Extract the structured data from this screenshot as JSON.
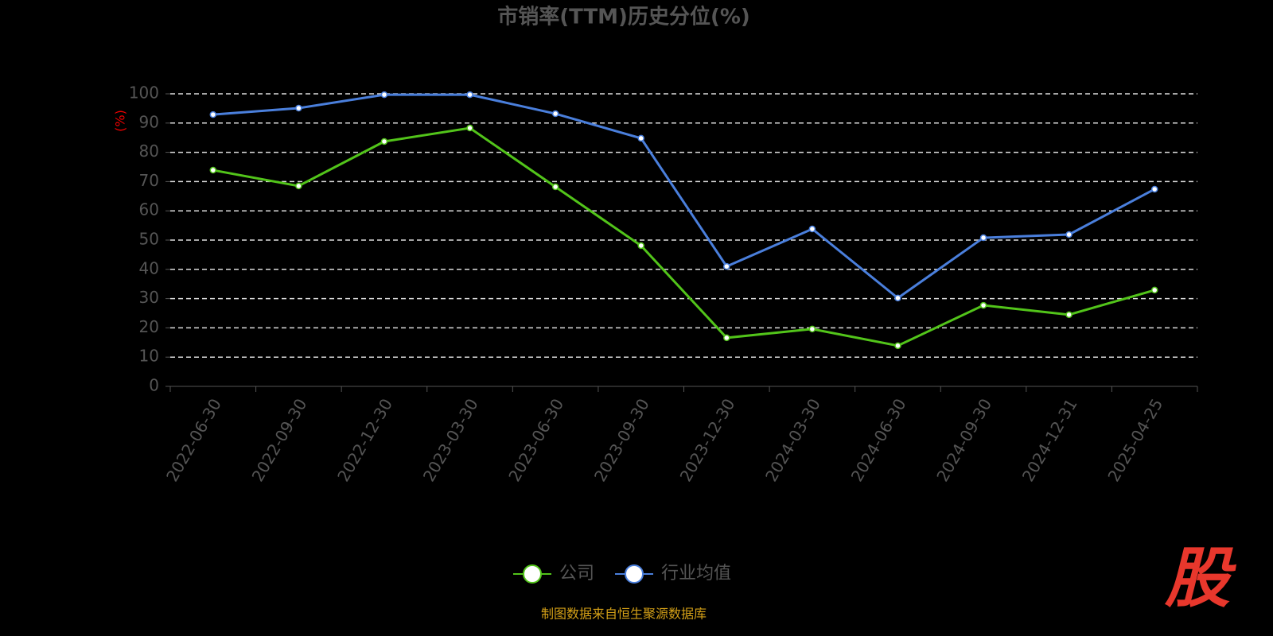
{
  "chart_data": {
    "type": "line",
    "title": "市销率(TTM)历史分位(%)",
    "y_label": "(%)",
    "categories": [
      "2022-06-30",
      "2022-09-30",
      "2022-12-30",
      "2023-03-30",
      "2023-06-30",
      "2023-09-30",
      "2023-12-30",
      "2024-03-30",
      "2024-06-30",
      "2024-09-30",
      "2024-12-31",
      "2025-04-25"
    ],
    "series": [
      {
        "name": "公司",
        "color": "#52c41a",
        "values": [
          73.9,
          68.5,
          83.7,
          88.3,
          68.2,
          48.1,
          16.6,
          19.6,
          13.9,
          27.7,
          24.5,
          32.9
        ]
      },
      {
        "name": "行业均值",
        "color": "#4a7fdc",
        "values": [
          92.9,
          95.1,
          99.7,
          99.7,
          93.2,
          84.8,
          41.0,
          53.8,
          30.2,
          50.8,
          51.9,
          67.4
        ]
      }
    ],
    "ylim": [
      0,
      100
    ],
    "yticks": [
      0,
      10,
      20,
      30,
      40,
      50,
      60,
      70,
      80,
      90,
      100
    ],
    "grid": true,
    "legend": "bottom"
  },
  "source": "制图数据来自恒生聚源数据库",
  "logo": "股"
}
